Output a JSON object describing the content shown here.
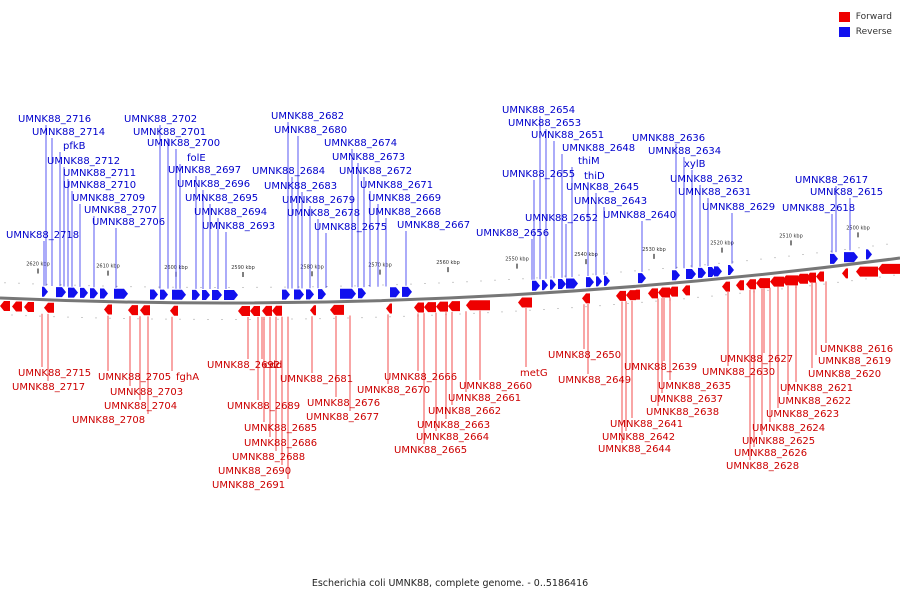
{
  "legend": {
    "forward_label": "Forward",
    "reverse_label": "Reverse",
    "forward_color": "#ee0000",
    "reverse_color": "#1111ee"
  },
  "caption": "Escherichia coli UMNK88, complete genome. - 0..5186416",
  "scale_labels": [
    "2620 kbp",
    "2610 kbp",
    "2600 kbp",
    "2590 kbp",
    "2580 kbp",
    "2570 kbp",
    "2560 kbp",
    "2550 kbp",
    "2540 kbp",
    "2530 kbp",
    "2520 kbp",
    "2510 kbp",
    "2500 kbp"
  ],
  "reverse_genes": [
    "UMNK88_2716",
    "UMNK88_2714",
    "pfkB",
    "UMNK88_2712",
    "UMNK88_2711",
    "UMNK88_2710",
    "UMNK88_2709",
    "UMNK88_2707",
    "UMNK88_2706",
    "UMNK88_2718",
    "UMNK88_2702",
    "UMNK88_2701",
    "UMNK88_2700",
    "folE",
    "UMNK88_2697",
    "UMNK88_2696",
    "UMNK88_2695",
    "UMNK88_2694",
    "UMNK88_2693",
    "UMNK88_2682",
    "UMNK88_2680",
    "UMNK88_2674",
    "UMNK88_2673",
    "UMNK88_2684",
    "UMNK88_2672",
    "UMNK88_2683",
    "UMNK88_2671",
    "UMNK88_2679",
    "UMNK88_2669",
    "UMNK88_2678",
    "UMNK88_2668",
    "UMNK88_2675",
    "UMNK88_2667",
    "UMNK88_2654",
    "UMNK88_2653",
    "UMNK88_2651",
    "UMNK88_2648",
    "thiM",
    "UMNK88_2655",
    "thiD",
    "UMNK88_2645",
    "UMNK88_2643",
    "UMNK88_2652",
    "UMNK88_2640",
    "UMNK88_2656",
    "UMNK88_2636",
    "UMNK88_2634",
    "xylB",
    "UMNK88_2632",
    "UMNK88_2631",
    "UMNK88_2629",
    "UMNK88_2617",
    "UMNK88_2615",
    "UMNK88_2618"
  ],
  "forward_genes": [
    "UMNK88_2715",
    "UMNK88_2717",
    "UMNK88_2705",
    "fghA",
    "UMNK88_2703",
    "UMNK88_2704",
    "UMNK88_2708",
    "UMNK88_2692",
    "cdd",
    "UMNK88_2689",
    "UMNK88_2685",
    "UMNK88_2686",
    "UMNK88_2688",
    "UMNK88_2690",
    "UMNK88_2691",
    "UMNK88_2681",
    "UMNK88_2676",
    "UMNK88_2677",
    "UMNK88_2666",
    "UMNK88_2670",
    "UMNK88_2660",
    "UMNK88_2661",
    "UMNK88_2662",
    "UMNK88_2663",
    "UMNK88_2664",
    "UMNK88_2665",
    "metG",
    "UMNK88_2650",
    "UMNK88_2649",
    "UMNK88_2639",
    "UMNK88_2635",
    "UMNK88_2637",
    "UMNK88_2638",
    "UMNK88_2641",
    "UMNK88_2642",
    "UMNK88_2644",
    "UMNK88_2616",
    "UMNK88_2619",
    "UMNK88_2627",
    "UMNK88_2620",
    "UMNK88_2630",
    "UMNK88_2621",
    "UMNK88_2622",
    "UMNK88_2623",
    "UMNK88_2624",
    "UMNK88_2625",
    "UMNK88_2626",
    "UMNK88_2628"
  ]
}
